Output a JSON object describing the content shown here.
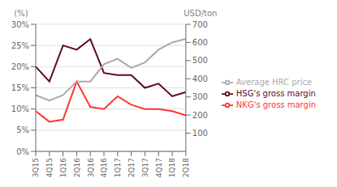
{
  "chart_data": {
    "type": "line",
    "categories": [
      "3Q15",
      "4Q15",
      "1Q16",
      "2Q16",
      "3Q16",
      "4Q16",
      "1Q17",
      "2Q17",
      "3Q17",
      "4Q17",
      "1Q18",
      "2Q18"
    ],
    "series": [
      {
        "name": "HSG's gross margin",
        "color": "#5C0A1E",
        "values": [
          20,
          16.5,
          25,
          24,
          26.5,
          18.5,
          18,
          18,
          15,
          16,
          13,
          14
        ]
      },
      {
        "name": "NKG's gross margin",
        "color": "#FF3333",
        "values": [
          9.5,
          7,
          7.5,
          16.5,
          10.5,
          10,
          13,
          11,
          10,
          10,
          9.5,
          8.5
        ]
      },
      {
        "name": "Average HRC price",
        "color": "#AAAAAA",
        "values": [
          310,
          280,
          310,
          385,
          385,
          480,
          510,
          460,
          490,
          560,
          600,
          620
        ],
        "axis": "y2"
      }
    ],
    "ylabel": "(%)",
    "y2label": "USD/ton",
    "ylim": [
      0,
      30
    ],
    "yticks": [
      {
        "value": 0,
        "label": "0%"
      },
      {
        "value": 5,
        "label": "5%"
      },
      {
        "value": 10,
        "label": "10%"
      },
      {
        "value": 15,
        "label": "15%"
      },
      {
        "value": 20,
        "label": "20%"
      },
      {
        "value": 25,
        "label": "25%"
      },
      {
        "value": 30,
        "label": "30%"
      }
    ],
    "y2lim": [
      0,
      700
    ],
    "y2ticks": [
      100,
      200,
      300,
      400,
      500,
      600,
      700
    ],
    "grid": true,
    "legend": "right"
  }
}
